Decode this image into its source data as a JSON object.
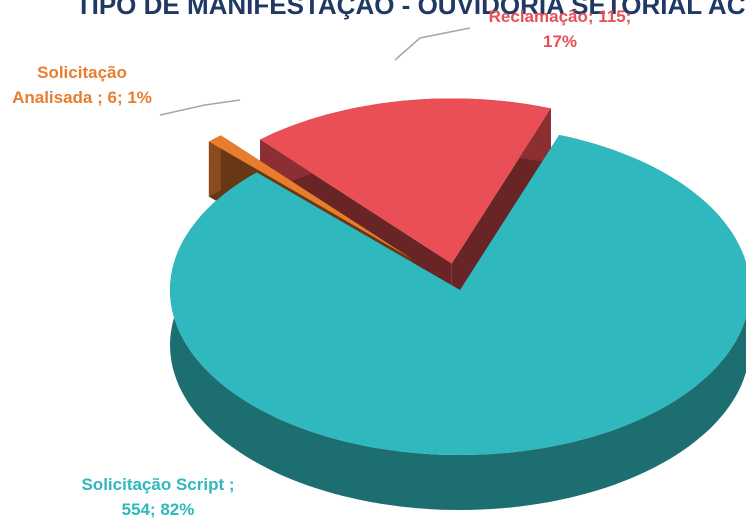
{
  "chart_data": {
    "type": "pie3d",
    "title": "TIPO DE MANIFESTAÇÃO - OUVIDORIA SETORIAL ACH",
    "values": [
      554,
      6,
      115
    ],
    "value_labels": [
      [
        "Solicitação  Script ;",
        "554; 82%"
      ],
      [
        "Solicitação",
        "Analisada ; 6; 1%"
      ],
      [
        "Reclamação; 115;",
        "17%"
      ]
    ],
    "colors": [
      "#2fb8bd",
      "#e87d2e",
      "#e94f55"
    ]
  }
}
